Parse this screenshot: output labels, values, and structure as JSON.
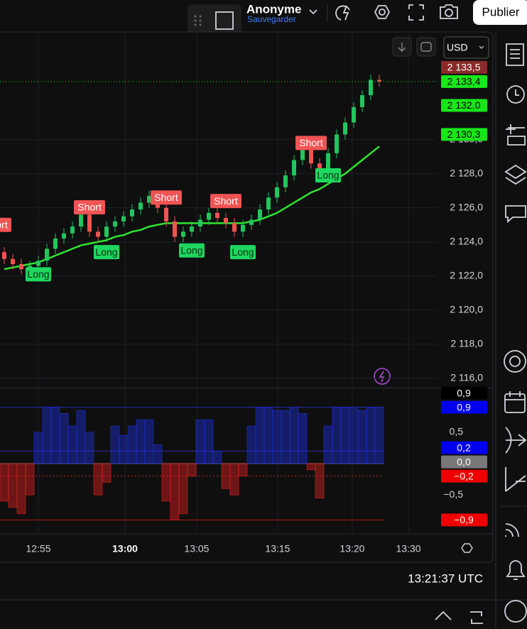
{
  "header": {
    "user": "Anonyme",
    "save": "Sauvegarder",
    "publish": "Publier"
  },
  "currency": "USD",
  "clock": "13:21:37 UTC",
  "chart_data": [
    {
      "type": "candlestick",
      "xlim": [
        -0.5,
        50.5
      ],
      "ylim": [
        2115.5,
        2136.1
      ],
      "grid": true,
      "up_color": "#22c55e",
      "down_color": "#ef5350",
      "open": [
        2123.4,
        2123.0,
        2122.7,
        2122.4,
        2122.6,
        2122.9,
        2123.6,
        2124.2,
        2124.5,
        2124.9,
        2125.6,
        2124.6,
        2124.3,
        2124.9,
        2125.2,
        2125.5,
        2125.9,
        2126.3,
        2126.7,
        2126.0,
        2125.2,
        2124.3,
        2124.6,
        2124.9,
        2125.3,
        2125.7,
        2125.4,
        2125.1,
        2124.6,
        2125.0,
        2125.3,
        2125.9,
        2126.6,
        2127.2,
        2127.9,
        2128.8,
        2129.4,
        2128.6,
        2128.3,
        2129.2,
        2130.3,
        2131.0,
        2131.9,
        2132.6,
        2133.5
      ],
      "high": [
        2123.7,
        2123.3,
        2123.0,
        2122.9,
        2123.2,
        2123.9,
        2124.5,
        2124.8,
        2125.2,
        2125.9,
        2125.9,
        2124.9,
        2125.2,
        2125.5,
        2125.8,
        2126.2,
        2126.6,
        2127.0,
        2127.0,
        2126.3,
        2125.5,
        2124.9,
        2125.2,
        2125.6,
        2126.0,
        2126.0,
        2125.7,
        2125.4,
        2125.3,
        2125.6,
        2126.2,
        2126.9,
        2127.5,
        2128.2,
        2129.1,
        2129.7,
        2129.7,
        2128.9,
        2129.5,
        2130.6,
        2131.3,
        2132.2,
        2132.9,
        2133.8,
        2133.8
      ],
      "low": [
        2122.7,
        2122.4,
        2122.1,
        2122.1,
        2122.3,
        2122.6,
        2123.3,
        2123.9,
        2124.2,
        2124.6,
        2124.3,
        2124.0,
        2124.0,
        2124.6,
        2124.9,
        2125.2,
        2125.6,
        2126.0,
        2125.7,
        2124.9,
        2124.0,
        2124.0,
        2124.3,
        2124.6,
        2125.0,
        2125.1,
        2124.8,
        2124.3,
        2124.3,
        2124.7,
        2125.0,
        2125.6,
        2126.3,
        2126.9,
        2127.6,
        2128.5,
        2128.3,
        2128.0,
        2128.0,
        2128.9,
        2130.0,
        2130.7,
        2131.6,
        2132.3,
        2133.1
      ],
      "close": [
        2123.0,
        2122.7,
        2122.4,
        2122.6,
        2122.9,
        2123.6,
        2124.2,
        2124.5,
        2124.9,
        2125.6,
        2124.6,
        2124.3,
        2124.9,
        2125.2,
        2125.5,
        2125.9,
        2126.3,
        2126.7,
        2126.0,
        2125.2,
        2124.3,
        2124.6,
        2124.9,
        2125.3,
        2125.7,
        2125.4,
        2125.1,
        2124.6,
        2125.0,
        2125.3,
        2125.9,
        2126.6,
        2127.2,
        2127.9,
        2128.8,
        2129.4,
        2128.6,
        2128.3,
        2129.2,
        2130.3,
        2131.0,
        2131.9,
        2132.6,
        2133.5,
        2133.4
      ],
      "series": [
        {
          "color": "#2ee62e",
          "values": [
            2122.4,
            2122.5,
            2122.6,
            2122.7,
            2122.8,
            2123.0,
            2123.2,
            2123.4,
            2123.6,
            2123.8,
            2123.9,
            2124.0,
            2124.1,
            2124.3,
            2124.4,
            2124.6,
            2124.7,
            2124.9,
            2125.0,
            2125.1,
            2125.1,
            2125.1,
            2125.1,
            2125.1,
            2125.1,
            2125.1,
            2125.1,
            2125.1,
            2125.1,
            2125.2,
            2125.3,
            2125.5,
            2125.7,
            2126.0,
            2126.3,
            2126.6,
            2126.9,
            2127.1,
            2127.4,
            2127.7,
            2128.0,
            2128.4,
            2128.8,
            2129.2,
            2129.6
          ]
        }
      ],
      "signals": [
        {
          "text": "Short",
          "index": -1,
          "price": 2125.0,
          "color": "#f05454"
        },
        {
          "text": "Long",
          "index": 4,
          "price": 2122.1,
          "color": "#1ed760"
        },
        {
          "text": "Short",
          "index": 10,
          "price": 2126.03,
          "color": "#f05454"
        },
        {
          "text": "Long",
          "index": 12,
          "price": 2123.4,
          "color": "#1ed760"
        },
        {
          "text": "Short",
          "index": 19,
          "price": 2126.6,
          "color": "#f05454"
        },
        {
          "text": "Long",
          "index": 22,
          "price": 2123.5,
          "color": "#1ed760"
        },
        {
          "text": "Short",
          "index": 26,
          "price": 2126.4,
          "color": "#f05454"
        },
        {
          "text": "Long",
          "index": 28,
          "price": 2123.4,
          "color": "#1ed760"
        },
        {
          "text": "Short",
          "index": 36,
          "price": 2129.8,
          "color": "#f05454"
        },
        {
          "text": "Long",
          "index": 38,
          "price": 2127.9,
          "color": "#1ed760"
        }
      ],
      "yticks": [
        {
          "value": 2116,
          "label": "2 116,0"
        },
        {
          "value": 2118,
          "label": "2 118,0"
        },
        {
          "value": 2120,
          "label": "2 120,0"
        },
        {
          "value": 2122,
          "label": "2 122,0"
        },
        {
          "value": 2124,
          "label": "2 124,0"
        },
        {
          "value": 2126,
          "label": "2 126,0"
        },
        {
          "value": 2128,
          "label": "2 128,0"
        },
        {
          "value": 2130,
          "label": "2 130,0"
        }
      ],
      "xticks": [
        {
          "value": 4,
          "label": "12:55"
        },
        {
          "value": 14.17,
          "label": "13:00",
          "bold": true
        },
        {
          "value": 22.58,
          "label": "13:05"
        },
        {
          "value": 32.08,
          "label": "13:15"
        },
        {
          "value": 40.83,
          "label": "13:20"
        },
        {
          "value": 47.42,
          "label": "13:30"
        }
      ],
      "price_labels": [
        {
          "value": 2133.5,
          "label": "2 133,5",
          "color": "#8b2a2a",
          "text_color": "#ffffff"
        },
        {
          "value": 2133.4,
          "label": "2 133,4",
          "color": "#19e619",
          "text_color": "#000000",
          "dotted": true
        },
        {
          "value": 2132.0,
          "label": "2 132,0",
          "color": "#19e619",
          "text_color": "#000000"
        },
        {
          "value": 2130.3,
          "label": "2 130,3",
          "color": "#19e619",
          "text_color": "#000000"
        }
      ]
    },
    {
      "type": "bar",
      "ylim": [
        -1.1,
        1.19
      ],
      "pos_color": "#1c2fd6",
      "neg_color": "#e02020",
      "values": [
        -0.6,
        -0.7,
        -0.8,
        -0.5,
        0.5,
        0.9,
        0.9,
        0.8,
        0.6,
        0.85,
        0.5,
        -0.5,
        -0.3,
        0.6,
        0.45,
        0.6,
        0.7,
        0.7,
        0.3,
        -0.6,
        -0.9,
        -0.8,
        -0.2,
        0.7,
        0.7,
        0.2,
        -0.4,
        -0.5,
        -0.2,
        0.6,
        0.9,
        0.9,
        0.85,
        0.85,
        0.9,
        0.8,
        -0.1,
        -0.55,
        0.6,
        0.9,
        0.9,
        0.9,
        0.85,
        0.9,
        0.9
      ],
      "yticks": [
        {
          "value": 0.5,
          "label": "0,5"
        },
        {
          "value": -0.5,
          "label": "−0,5"
        }
      ],
      "levels": [
        {
          "value": 0.9,
          "color": "#2a2ab8"
        },
        {
          "value": 0.2,
          "color": "#2a2ab8"
        },
        {
          "value": 0,
          "color": "#8a90a0"
        },
        {
          "value": -0.2,
          "color": "#d02020",
          "dotted": true
        },
        {
          "value": -0.9,
          "color": "#b01818"
        }
      ],
      "price_labels": [
        {
          "value": 0.9,
          "label": "0,9",
          "color": "#0000ee",
          "text_color": "#ffffff"
        },
        {
          "value": 0.9,
          "label": "0,9",
          "color": "#000000",
          "text_color": "#ffffff"
        },
        {
          "value": 0.2,
          "label": "0,2",
          "color": "#0000ee",
          "text_color": "#ffffff"
        },
        {
          "value": 0,
          "label": "0,0",
          "color": "#787878",
          "text_color": "#ffffff"
        },
        {
          "value": -0.2,
          "label": "−0,2",
          "color": "#ee0000",
          "text_color": "#ffffff"
        },
        {
          "value": -0.9,
          "label": "−0,9",
          "color": "#ee0000",
          "text_color": "#ffffff"
        }
      ]
    }
  ]
}
